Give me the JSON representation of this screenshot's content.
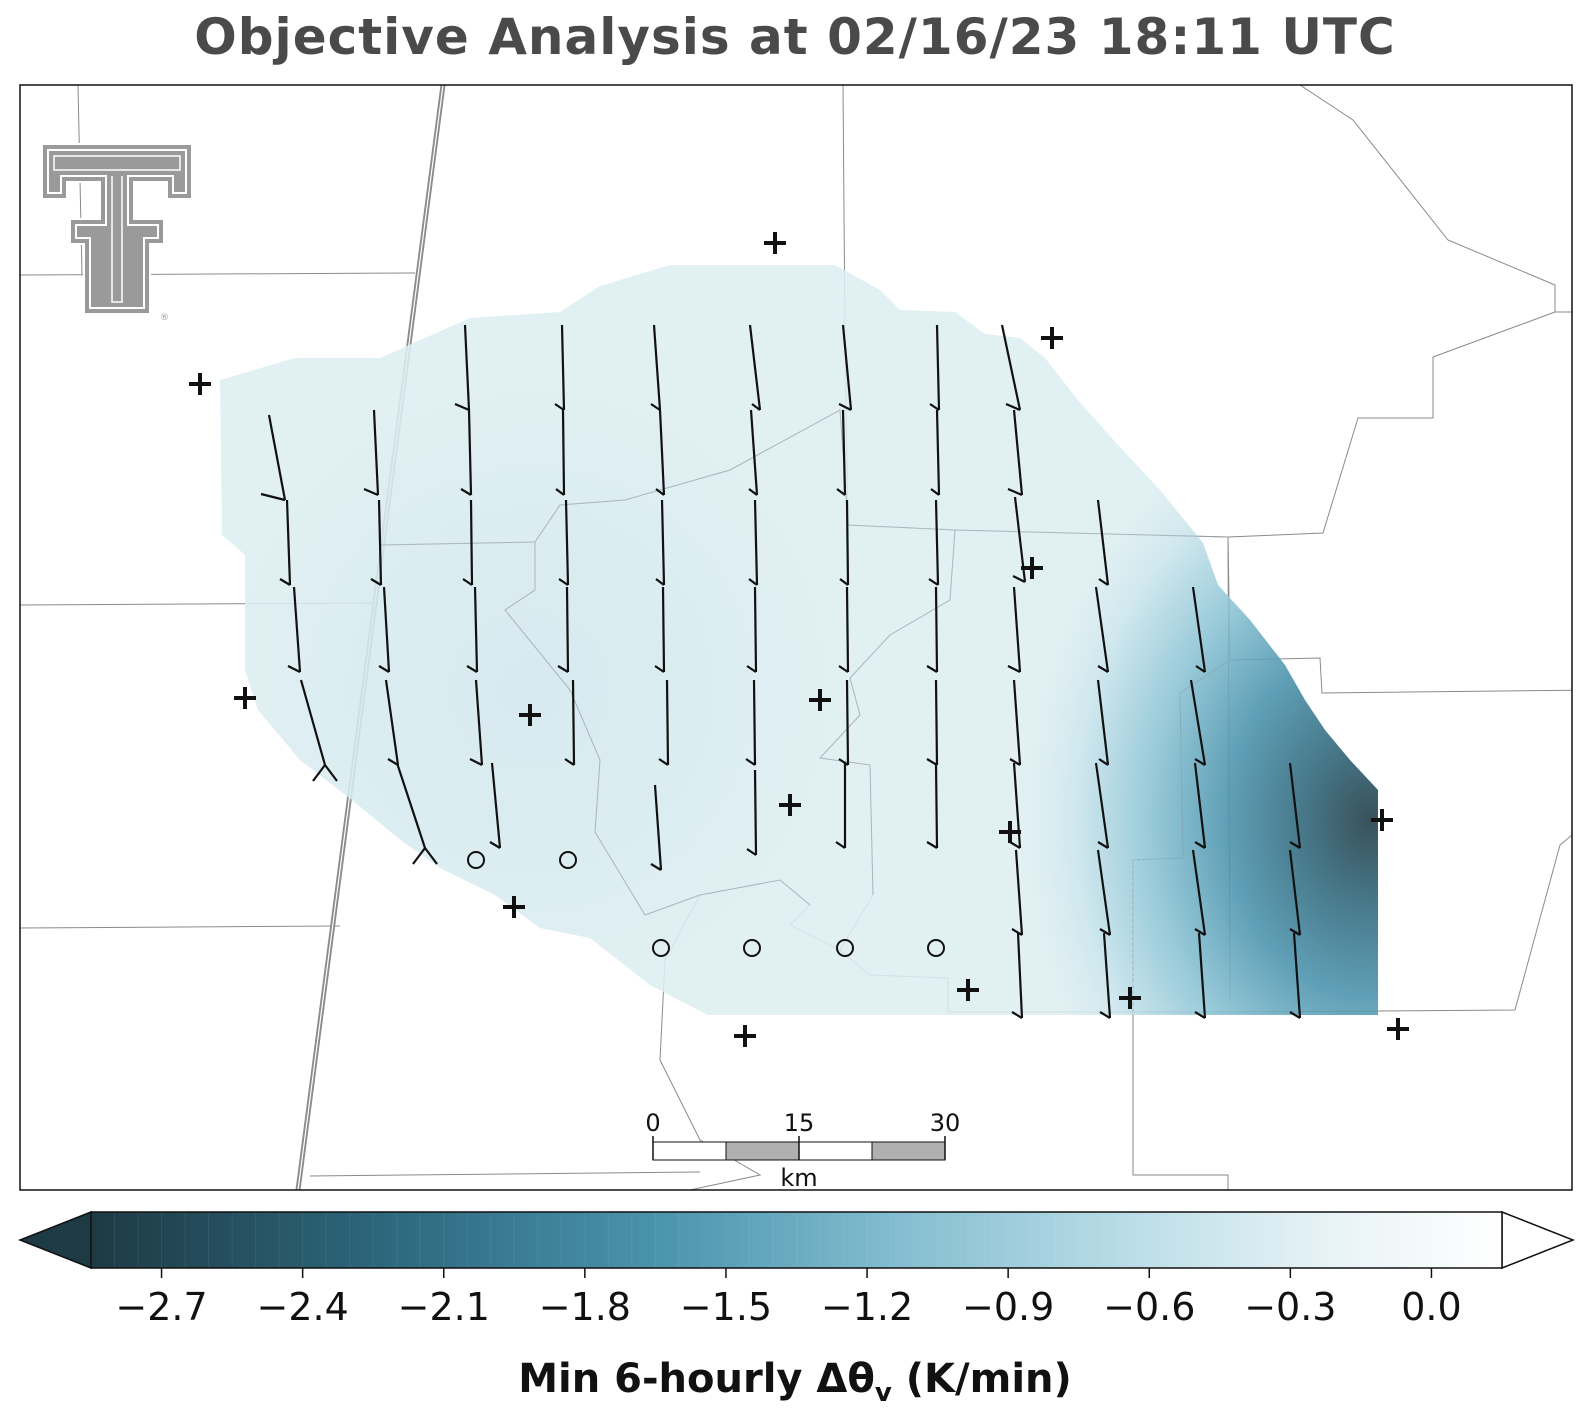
{
  "title": "Objective Analysis at 02/16/23 18:11 UTC",
  "logo": {
    "icon": "texas-tech-double-t-logo",
    "color": "#9a9a9a"
  },
  "scale_bar": {
    "ticks": [
      "0",
      "15",
      "30"
    ],
    "unit": "km"
  },
  "colorbar": {
    "label_main": "Min 6-hourly Δθ",
    "label_sub": "v",
    "label_unit": " (K/min)",
    "ticks": [
      "−2.7",
      "−2.4",
      "−2.1",
      "−1.8",
      "−1.5",
      "−1.2",
      "−0.9",
      "−0.6",
      "−0.3",
      "0.0"
    ],
    "min": -2.85,
    "max": 0.15,
    "extend": "both",
    "colormap": "dark teal → light blue → white",
    "colors": [
      "#1e3a44",
      "#2e6a80",
      "#4a93ad",
      "#86bfd1",
      "#bfdfe9",
      "#e8f3f6",
      "#ffffff"
    ]
  },
  "field": {
    "min_value": -2.8,
    "background_value": -0.25
  },
  "markers": {
    "stations": "plus-marker",
    "calm_winds": "calm-wind-circle",
    "winds": "wind-barb"
  }
}
